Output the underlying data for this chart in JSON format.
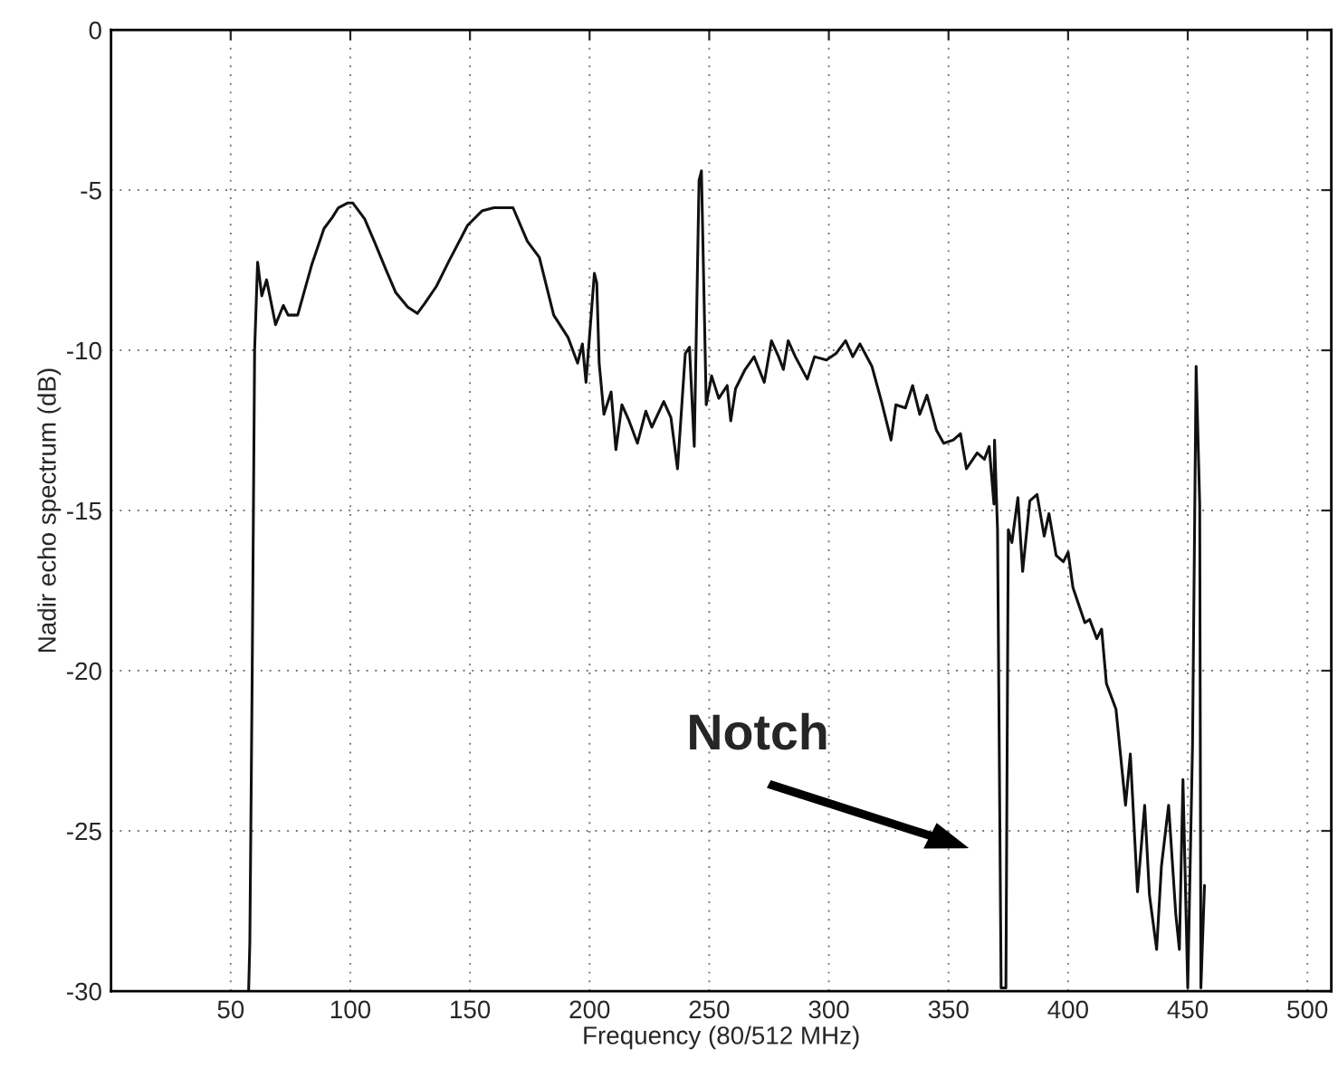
{
  "chart_data": {
    "type": "line",
    "xlabel": "Frequency (80/512 MHz)",
    "ylabel": "Nadir echo spectrum (dB)",
    "xlim": [
      0,
      510
    ],
    "xticks": [
      50,
      100,
      150,
      200,
      250,
      300,
      350,
      400,
      450,
      500
    ],
    "ylim": [
      -30,
      0
    ],
    "yticks": [
      -30,
      -25,
      -20,
      -15,
      -10,
      -5,
      0
    ],
    "grid": true,
    "line_style": "solid",
    "marker": "none",
    "series": [
      {
        "color": "#111111",
        "x": [
          57.5,
          58,
          59,
          60,
          61.25,
          63,
          65,
          68.75,
          72,
          74,
          78,
          84,
          89,
          92.5,
          95,
          99,
          101,
          106,
          110,
          115,
          119,
          124,
          128,
          131,
          136,
          141,
          149,
          155,
          160,
          168,
          174,
          179,
          185,
          191,
          195,
          197,
          198.5,
          202,
          203,
          204,
          206,
          209,
          211,
          213.5,
          216.5,
          220,
          223.5,
          226,
          231,
          234,
          236.75,
          240,
          241.75,
          243.75,
          245.75,
          246.75,
          248.75,
          251,
          254,
          257.5,
          259,
          261,
          265,
          268.75,
          273,
          276,
          279,
          281,
          283,
          286,
          291,
          294,
          299,
          303,
          307,
          310,
          313,
          318,
          322,
          326,
          328,
          332,
          335,
          338,
          341,
          345,
          348,
          352,
          355,
          357.5,
          362,
          365,
          367,
          369,
          369.25,
          370.5,
          372,
          374,
          375,
          376.5,
          379,
          381,
          384,
          387,
          390,
          392,
          395,
          398,
          400,
          402,
          407,
          409,
          412,
          414,
          416,
          420,
          424,
          426,
          429,
          432,
          434,
          437,
          439,
          442,
          445,
          446.5,
          448,
          450,
          452,
          453.5,
          455,
          455.5,
          457
        ],
        "values": [
          -30,
          -28.5,
          -20,
          -10,
          -7.25,
          -8.3,
          -7.8,
          -9.2,
          -8.6,
          -8.9,
          -8.9,
          -7.3,
          -6.2,
          -5.85,
          -5.55,
          -5.4,
          -5.4,
          -5.9,
          -6.6,
          -7.5,
          -8.2,
          -8.65,
          -8.85,
          -8.55,
          -8.0,
          -7.25,
          -6.1,
          -5.65,
          -5.55,
          -5.55,
          -6.6,
          -7.1,
          -8.9,
          -9.6,
          -10.4,
          -9.8,
          -11.0,
          -7.6,
          -7.9,
          -10.4,
          -12.0,
          -11.3,
          -13.1,
          -11.7,
          -12.2,
          -12.9,
          -11.9,
          -12.4,
          -11.6,
          -12.1,
          -13.7,
          -10.1,
          -9.9,
          -13.0,
          -4.7,
          -4.4,
          -11.7,
          -10.8,
          -11.5,
          -11.1,
          -12.2,
          -11.2,
          -10.6,
          -10.2,
          -11.0,
          -9.7,
          -10.2,
          -10.6,
          -9.7,
          -10.2,
          -10.9,
          -10.2,
          -10.3,
          -10.1,
          -9.7,
          -10.2,
          -9.8,
          -10.5,
          -11.6,
          -12.8,
          -11.7,
          -11.8,
          -11.1,
          -12.0,
          -11.4,
          -12.5,
          -12.9,
          -12.8,
          -12.6,
          -13.7,
          -13.2,
          -13.4,
          -13.0,
          -14.8,
          -12.8,
          -15.6,
          -29.9,
          -29.9,
          -15.6,
          -16.0,
          -14.6,
          -16.9,
          -14.7,
          -14.5,
          -15.8,
          -15.1,
          -16.4,
          -16.6,
          -16.3,
          -17.4,
          -18.5,
          -18.4,
          -19.0,
          -18.7,
          -20.4,
          -21.2,
          -24.2,
          -22.6,
          -26.9,
          -24.2,
          -27.0,
          -28.7,
          -26.1,
          -24.2,
          -27.6,
          -28.7,
          -23.4,
          -29.9,
          -22.3,
          -10.5,
          -14.8,
          -29.9,
          -26.7
        ]
      }
    ],
    "annotations": [
      "Notch"
    ]
  }
}
